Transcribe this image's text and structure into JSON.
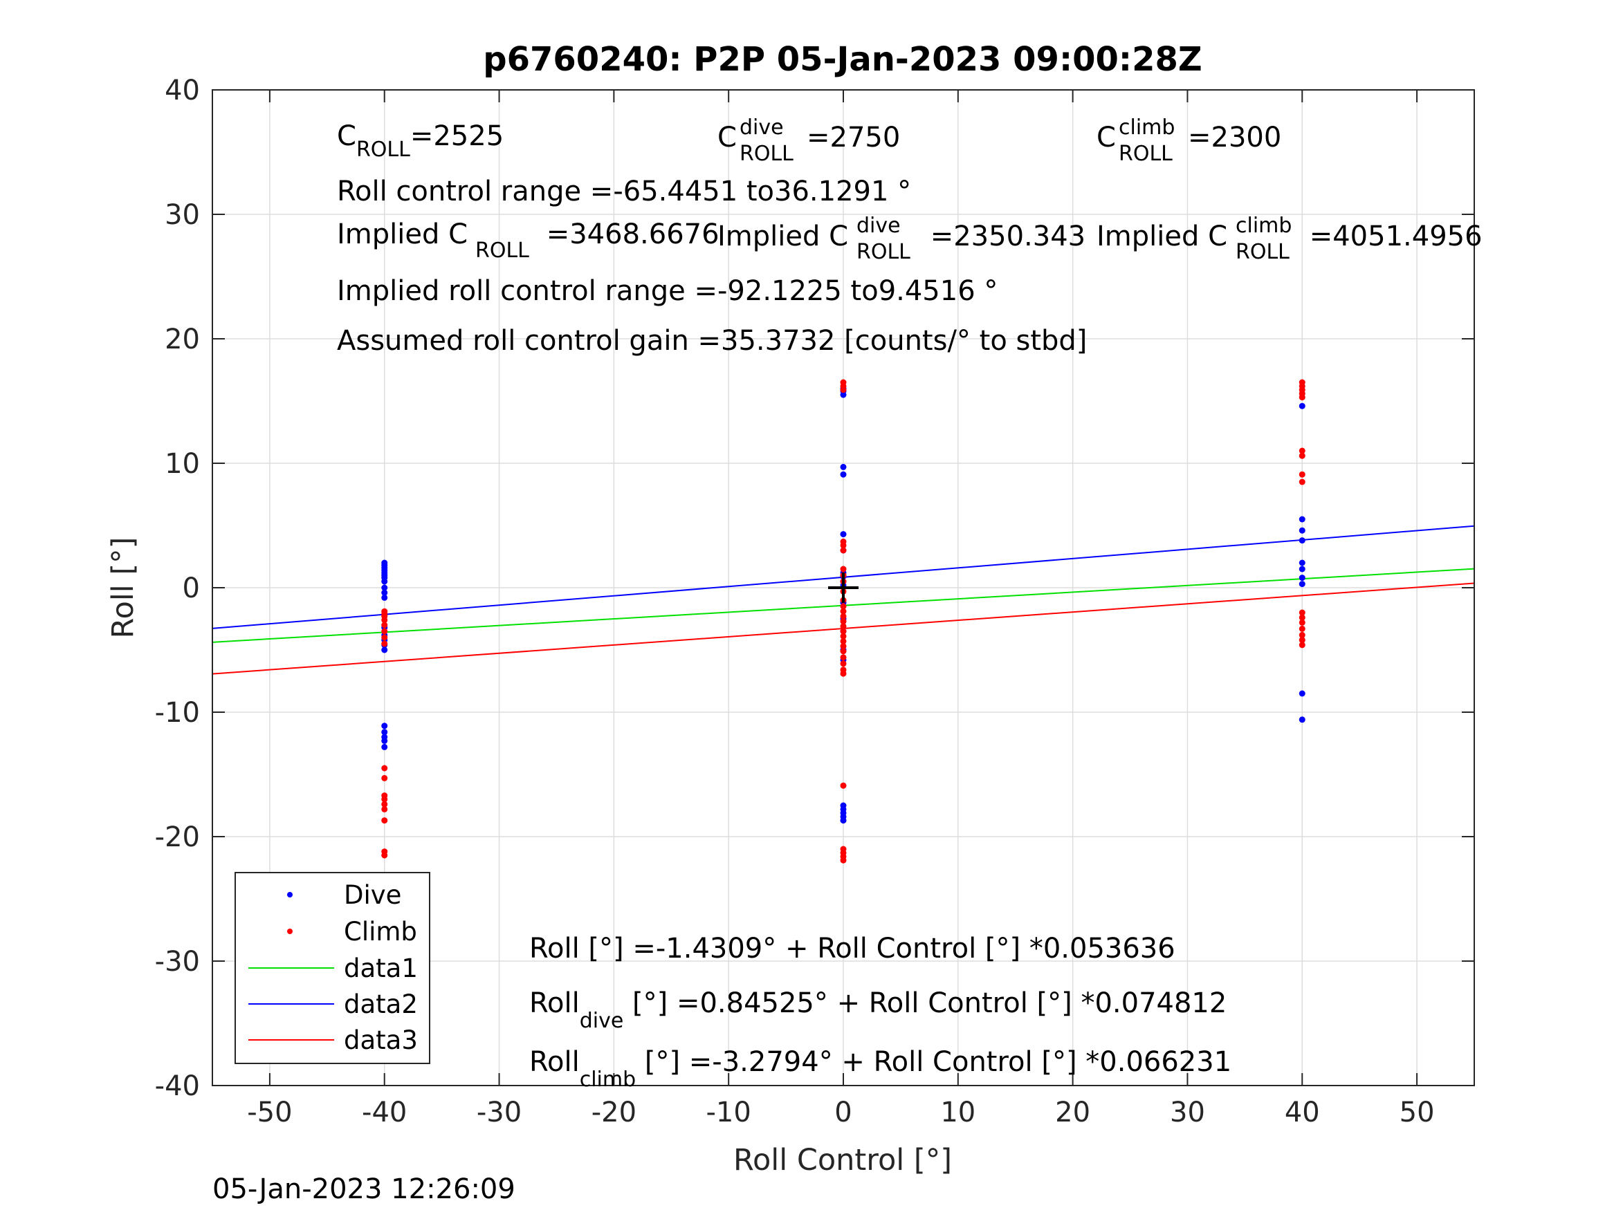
{
  "chart_data": {
    "type": "scatter",
    "title": "p6760240: P2P 05-Jan-2023 09:00:28Z",
    "xlabel": "Roll Control [°]",
    "ylabel": "Roll [°]",
    "xlim": [
      -55,
      55
    ],
    "ylim": [
      -40,
      40
    ],
    "xticks": [
      -50,
      -40,
      -30,
      -20,
      -10,
      0,
      10,
      20,
      30,
      40,
      50
    ],
    "yticks": [
      -40,
      -30,
      -20,
      -10,
      0,
      10,
      20,
      30,
      40
    ],
    "grid": true,
    "legend_position": "bottom-left",
    "timestamp": "05-Jan-2023 12:26:09",
    "colors": {
      "dive": "#0000ff",
      "climb": "#ff0000",
      "data1": "#00e000",
      "data2": "#0000ff",
      "data3": "#ff0000",
      "grid": "#dddddd"
    },
    "series": [
      {
        "name": "Dive",
        "kind": "points",
        "color": "#0000ff",
        "points": [
          [
            -40,
            2.0
          ],
          [
            -40,
            1.8
          ],
          [
            -40,
            1.6
          ],
          [
            -40,
            1.4
          ],
          [
            -40,
            1.2
          ],
          [
            -40,
            1.0
          ],
          [
            -40,
            0.8
          ],
          [
            -40,
            0.5
          ],
          [
            -40,
            0.0
          ],
          [
            -40,
            -0.4
          ],
          [
            -40,
            -0.8
          ],
          [
            -40,
            -2.2
          ],
          [
            -40,
            -3.2
          ],
          [
            -40,
            -3.8
          ],
          [
            -40,
            -4.2
          ],
          [
            -40,
            -4.6
          ],
          [
            -40,
            -5.0
          ],
          [
            -40,
            -11.1
          ],
          [
            -40,
            -11.6
          ],
          [
            -40,
            -12.0
          ],
          [
            -40,
            -12.3
          ],
          [
            -40,
            -12.8
          ],
          [
            0,
            15.5
          ],
          [
            0,
            15.8
          ],
          [
            0,
            16.0
          ],
          [
            0,
            9.7
          ],
          [
            0,
            9.1
          ],
          [
            0,
            4.3
          ],
          [
            0,
            3.0
          ],
          [
            0,
            1.2
          ],
          [
            0,
            0.9
          ],
          [
            0,
            0.5
          ],
          [
            0,
            0.2
          ],
          [
            0,
            -1.2
          ],
          [
            0,
            -2.5
          ],
          [
            0,
            -3.5
          ],
          [
            0,
            -5.0
          ],
          [
            0,
            -5.8
          ],
          [
            0,
            -17.5
          ],
          [
            0,
            -17.8
          ],
          [
            0,
            -18.1
          ],
          [
            0,
            -18.4
          ],
          [
            0,
            -18.7
          ],
          [
            40,
            14.6
          ],
          [
            40,
            5.5
          ],
          [
            40,
            4.6
          ],
          [
            40,
            3.8
          ],
          [
            40,
            2.0
          ],
          [
            40,
            1.5
          ],
          [
            40,
            0.8
          ],
          [
            40,
            0.3
          ],
          [
            40,
            -8.5
          ],
          [
            40,
            -10.6
          ]
        ]
      },
      {
        "name": "Climb",
        "kind": "points",
        "color": "#ff0000",
        "points": [
          [
            -40,
            -1.9
          ],
          [
            -40,
            -2.1
          ],
          [
            -40,
            -2.3
          ],
          [
            -40,
            -2.6
          ],
          [
            -40,
            -3.0
          ],
          [
            -40,
            -3.5
          ],
          [
            -40,
            -4.0
          ],
          [
            -40,
            -4.5
          ],
          [
            -40,
            -14.5
          ],
          [
            -40,
            -15.3
          ],
          [
            -40,
            -16.7
          ],
          [
            -40,
            -17.0
          ],
          [
            -40,
            -17.4
          ],
          [
            -40,
            -17.8
          ],
          [
            -40,
            -18.7
          ],
          [
            -40,
            -21.2
          ],
          [
            -40,
            -21.5
          ],
          [
            0,
            16.5
          ],
          [
            0,
            16.2
          ],
          [
            0,
            15.9
          ],
          [
            0,
            3.7
          ],
          [
            0,
            3.4
          ],
          [
            0,
            3.0
          ],
          [
            0,
            1.5
          ],
          [
            0,
            1.0
          ],
          [
            0,
            0.5
          ],
          [
            0,
            -0.3
          ],
          [
            0,
            -1.0
          ],
          [
            0,
            -1.5
          ],
          [
            0,
            -1.9
          ],
          [
            0,
            -2.3
          ],
          [
            0,
            -2.7
          ],
          [
            0,
            -3.1
          ],
          [
            0,
            -3.5
          ],
          [
            0,
            -3.9
          ],
          [
            0,
            -4.3
          ],
          [
            0,
            -4.7
          ],
          [
            0,
            -5.1
          ],
          [
            0,
            -5.6
          ],
          [
            0,
            -6.1
          ],
          [
            0,
            -6.6
          ],
          [
            0,
            -6.9
          ],
          [
            0,
            -15.9
          ],
          [
            0,
            -21.0
          ],
          [
            0,
            -21.3
          ],
          [
            0,
            -21.6
          ],
          [
            0,
            -21.9
          ],
          [
            40,
            16.5
          ],
          [
            40,
            16.2
          ],
          [
            40,
            15.9
          ],
          [
            40,
            15.6
          ],
          [
            40,
            15.3
          ],
          [
            40,
            11.0
          ],
          [
            40,
            10.6
          ],
          [
            40,
            9.1
          ],
          [
            40,
            8.5
          ],
          [
            40,
            -2.0
          ],
          [
            40,
            -2.4
          ],
          [
            40,
            -2.8
          ],
          [
            40,
            -3.3
          ],
          [
            40,
            -3.8
          ],
          [
            40,
            -4.2
          ],
          [
            40,
            -4.6
          ]
        ]
      },
      {
        "name": "data1",
        "kind": "line",
        "color": "#00e000",
        "x": [
          -55,
          55
        ],
        "y": [
          -4.3809,
          1.5191
        ]
      },
      {
        "name": "data2",
        "kind": "line",
        "color": "#0000ff",
        "x": [
          -55,
          55
        ],
        "y": [
          -3.2694,
          4.9599
        ]
      },
      {
        "name": "data3",
        "kind": "line",
        "color": "#ff0000",
        "x": [
          -55,
          55
        ],
        "y": [
          -6.9221,
          0.3633
        ]
      }
    ],
    "marker": {
      "symbol": "+",
      "x": 0,
      "y": 0,
      "color": "#000000"
    },
    "annotations": {
      "c_roll_main": "C",
      "c_roll_sub": "ROLL",
      "c_roll_val": "=2525",
      "c_dive_main": "C",
      "c_dive_sup": "dive",
      "c_dive_sub": "ROLL",
      "c_dive_val": "=2750",
      "c_climb_main": "C",
      "c_climb_sup": "climb",
      "c_climb_sub": "ROLL",
      "c_climb_val": "=2300",
      "range": "Roll control range =-65.4451 to36.1291 °",
      "impl_roll_pre": "Implied C",
      "impl_roll_sub": "ROLL",
      "impl_roll_val": " =3468.6676",
      "impl_dive_pre": "Implied C",
      "impl_dive_sup": "dive",
      "impl_dive_sub": "ROLL",
      "impl_dive_val": " =2350.343",
      "impl_climb_pre": "Implied C",
      "impl_climb_sup": "climb",
      "impl_climb_sub": "ROLL",
      "impl_climb_val": " =4051.4956",
      "impl_range": "Implied roll control range =-92.1225 to9.4516 °",
      "gain": "Assumed roll control gain =35.3732 [counts/° to stbd]",
      "eq1": "Roll [°] =-1.4309° + Roll Control [°] *0.053636",
      "eq2_pre": "Roll",
      "eq2_sub": "dive",
      "eq2_post": " [°] =0.84525° + Roll Control [°] *0.074812",
      "eq3_pre": "Roll",
      "eq3_sub": "climb",
      "eq3_post": " [°] =-3.2794° + Roll Control [°] *0.066231"
    }
  }
}
